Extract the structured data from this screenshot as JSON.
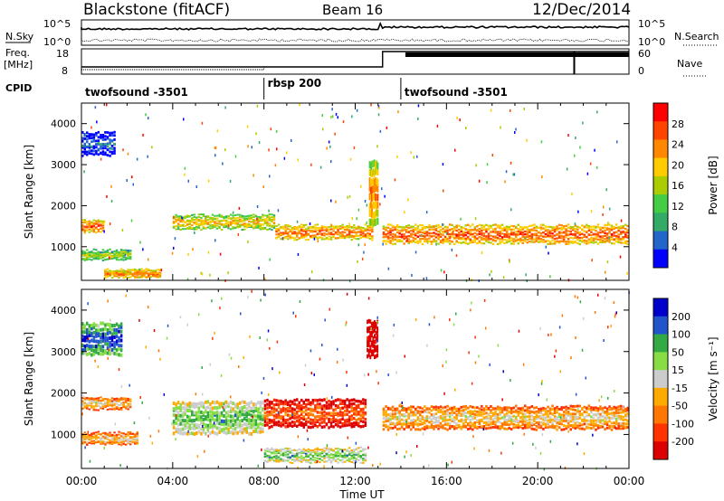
{
  "header": {
    "title": "Blackstone (fitACF)",
    "beam": "Beam 16",
    "date": "12/Dec/2014"
  },
  "sky_panel": {
    "left_label": "N.Sky",
    "right_label": "N.Search",
    "left_ticks": [
      "10^5",
      "10^0"
    ],
    "right_ticks": [
      "10^5",
      "10^0"
    ]
  },
  "freq_panel": {
    "left_label_1": "Freq.",
    "left_label_2": "[MHz]",
    "right_label": "Nave",
    "left_ticks": [
      "18",
      "8"
    ],
    "right_ticks": [
      "60",
      "0"
    ]
  },
  "cpid": {
    "label": "CPID",
    "modes": [
      {
        "name": "twofsound -3501",
        "start_h": 0,
        "end_h": 8
      },
      {
        "name": "rbsp 200",
        "start_h": 8,
        "end_h": 14
      },
      {
        "name": "twofsound -3501",
        "start_h": 14,
        "end_h": 24
      }
    ]
  },
  "chart_data": [
    {
      "type": "heatmap",
      "name": "Power",
      "xlabel": "",
      "ylabel": "Slant Range [km]",
      "xlim": [
        0,
        24
      ],
      "ylim": [
        180,
        4500
      ],
      "yticks": [
        1000,
        2000,
        3000,
        4000
      ],
      "colorbar": {
        "label": "Power [dB]",
        "ticks": [
          "28",
          "24",
          "20",
          "16",
          "12",
          "8",
          "4"
        ],
        "colors": [
          "#ff0000",
          "#ff4400",
          "#ff8800",
          "#ffcc00",
          "#aacc00",
          "#44cc44",
          "#33aa66",
          "#2266cc",
          "#0000ff"
        ]
      },
      "echo_bands": [
        {
          "start_h": 0.0,
          "end_h": 1.0,
          "center_km": 1500,
          "width_km": 250,
          "level": 0.9
        },
        {
          "start_h": 0.0,
          "end_h": 2.2,
          "center_km": 800,
          "width_km": 200,
          "level": 0.6
        },
        {
          "start_h": 1.0,
          "end_h": 3.5,
          "center_km": 350,
          "width_km": 150,
          "level": 0.85
        },
        {
          "start_h": 4.0,
          "end_h": 8.5,
          "center_km": 1600,
          "width_km": 300,
          "level": 0.7
        },
        {
          "start_h": 8.5,
          "end_h": 12.8,
          "center_km": 1350,
          "width_km": 300,
          "level": 0.85
        },
        {
          "start_h": 12.6,
          "end_h": 13.0,
          "center_km": 2300,
          "width_km": 1400,
          "level": 0.8
        },
        {
          "start_h": 13.2,
          "end_h": 24.0,
          "center_km": 1300,
          "width_km": 400,
          "level": 0.9
        },
        {
          "start_h": 0.0,
          "end_h": 1.5,
          "center_km": 3500,
          "width_km": 500,
          "level": 0.2
        }
      ]
    },
    {
      "type": "heatmap",
      "name": "Velocity",
      "xlabel": "Time UT",
      "ylabel": "Slant Range [km]",
      "xlim": [
        0,
        24
      ],
      "ylim": [
        180,
        4500
      ],
      "xticks": [
        "00:00",
        "04:00",
        "08:00",
        "12:00",
        "16:00",
        "20:00",
        "00:00"
      ],
      "yticks": [
        1000,
        2000,
        3000,
        4000
      ],
      "colorbar": {
        "label": "Velocity [m s⁻¹]",
        "ticks": [
          "200",
          "100",
          "50",
          "15",
          "-15",
          "-50",
          "-100",
          "-200"
        ],
        "colors": [
          "#0000cc",
          "#2255cc",
          "#33aa44",
          "#88dd44",
          "#cccccc",
          "#ffaa00",
          "#ff7700",
          "#ff3300",
          "#dd0000"
        ]
      },
      "echo_bands": [
        {
          "start_h": 0.0,
          "end_h": 2.2,
          "center_km": 1750,
          "width_km": 250,
          "level": 0.5
        },
        {
          "start_h": 0.0,
          "end_h": 2.5,
          "center_km": 900,
          "width_km": 250,
          "level": 0.5
        },
        {
          "start_h": 0.0,
          "end_h": 1.8,
          "center_km": 3300,
          "width_km": 700,
          "level": 0.97
        },
        {
          "start_h": 4.0,
          "end_h": 8.0,
          "center_km": 1400,
          "width_km": 700,
          "level": 0.75
        },
        {
          "start_h": 8.0,
          "end_h": 12.5,
          "center_km": 1500,
          "width_km": 600,
          "level": 0.25
        },
        {
          "start_h": 8.0,
          "end_h": 12.5,
          "center_km": 500,
          "width_km": 300,
          "level": 0.75
        },
        {
          "start_h": 12.5,
          "end_h": 13.0,
          "center_km": 3300,
          "width_km": 800,
          "level": 0.05
        },
        {
          "start_h": 13.2,
          "end_h": 24.0,
          "center_km": 1400,
          "width_km": 500,
          "level": 0.5
        }
      ]
    }
  ]
}
